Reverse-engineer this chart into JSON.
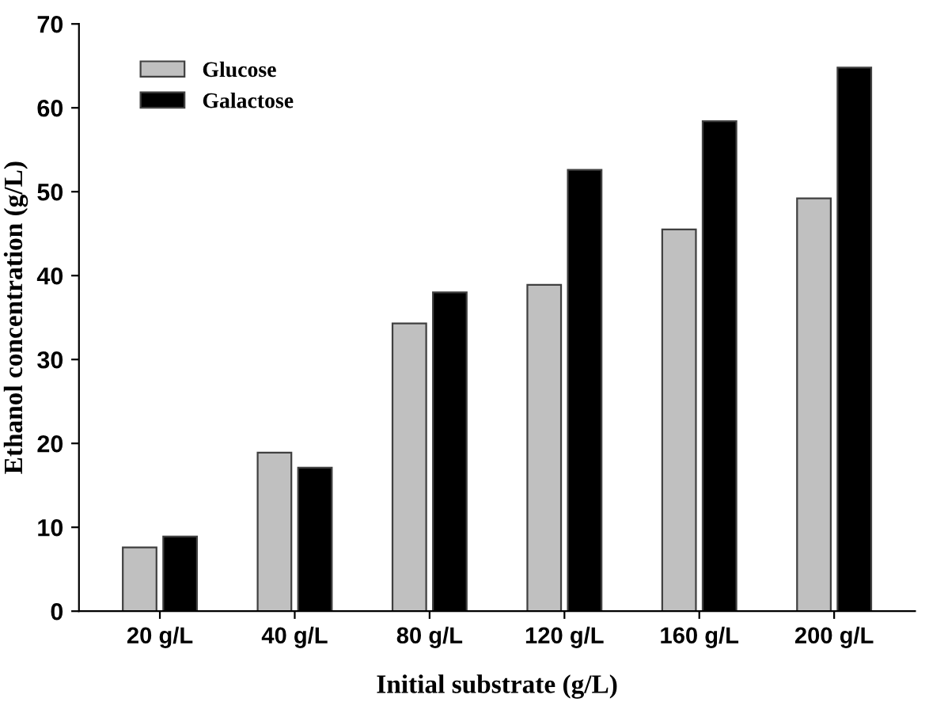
{
  "chart_data": {
    "type": "bar",
    "xlabel": "Initial substrate (g/L)",
    "ylabel": "Ethanol concentration (g/L)",
    "categories": [
      "20 g/L",
      "40 g/L",
      "80 g/L",
      "120 g/L",
      "160 g/L",
      "200 g/L"
    ],
    "series": [
      {
        "name": "Glucose",
        "color": "#c0c0c0",
        "values": [
          7.6,
          18.9,
          34.3,
          38.9,
          45.5,
          49.2
        ]
      },
      {
        "name": "Galactose",
        "color": "#000000",
        "values": [
          8.9,
          17.1,
          38.0,
          52.6,
          58.4,
          64.8
        ]
      }
    ],
    "ylim": [
      0,
      70
    ],
    "yticks": [
      0,
      10,
      20,
      30,
      40,
      50,
      60,
      70
    ],
    "grid": false,
    "legend": "top left"
  }
}
